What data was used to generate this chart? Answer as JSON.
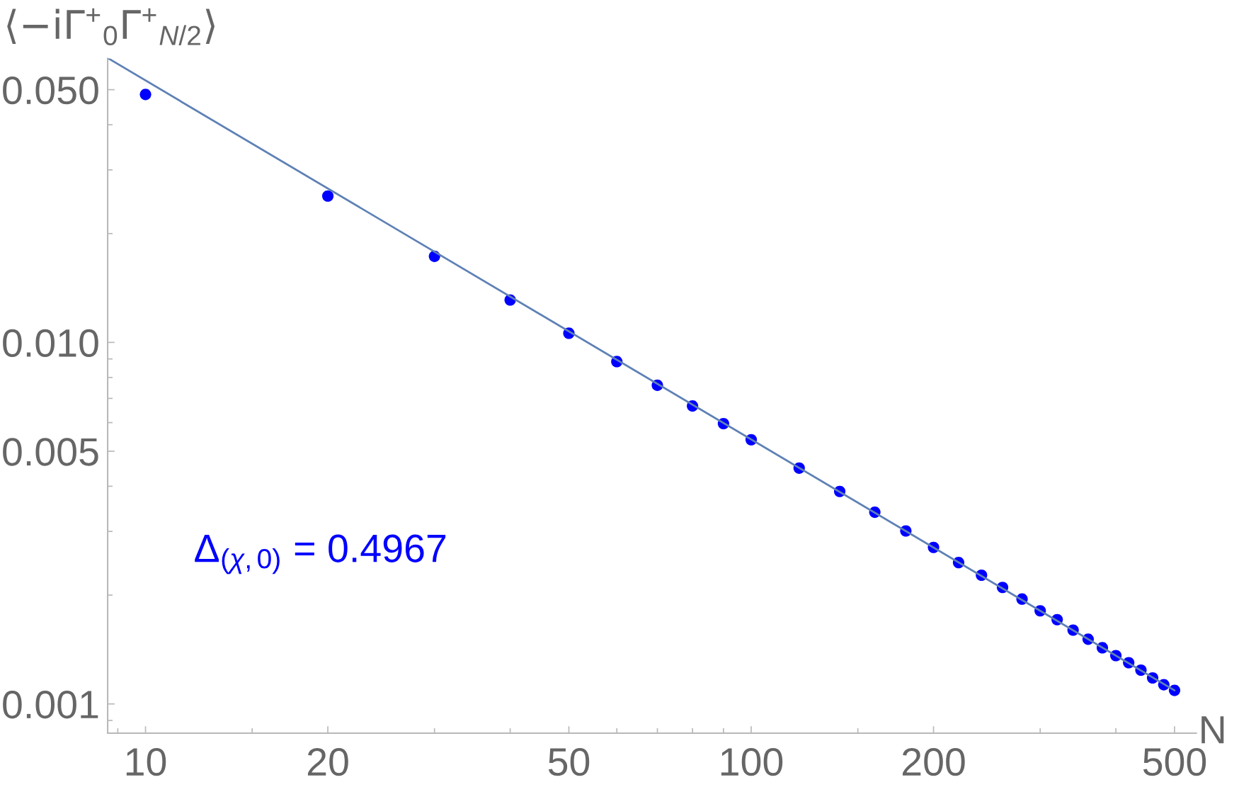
{
  "chart_data": {
    "type": "scatter",
    "xlabel": "N",
    "ylabel": "⟨−iΓ$^{+}$$_{0}$Γ$^{+}$$_{N/2}$⟩",
    "log": "xy",
    "xlim": [
      8.66,
      543
    ],
    "ylim": [
      0.00083,
      0.061
    ],
    "xticks": [
      {
        "value": 9,
        "label": null
      },
      10,
      {
        "value": 15,
        "label": null
      },
      20,
      {
        "value": 30,
        "label": null
      },
      {
        "value": 40,
        "label": null
      },
      50,
      {
        "value": 60,
        "label": null
      },
      {
        "value": 70,
        "label": null
      },
      {
        "value": 80,
        "label": null
      },
      {
        "value": 90,
        "label": null
      },
      100,
      {
        "value": 150,
        "label": null
      },
      200,
      {
        "value": 300,
        "label": null
      },
      {
        "value": 400,
        "label": null
      },
      500
    ],
    "yticks": [
      {
        "value": 0.0009,
        "label": null
      },
      0.001,
      {
        "value": 0.002,
        "label": null
      },
      {
        "value": 0.003,
        "label": null
      },
      {
        "value": 0.004,
        "label": null
      },
      0.005,
      {
        "value": 0.006,
        "label": null
      },
      {
        "value": 0.007,
        "label": null
      },
      {
        "value": 0.008,
        "label": null
      },
      {
        "value": 0.009,
        "label": null
      },
      {
        "value": 0.01,
        "label": "0.010"
      },
      {
        "value": 0.02,
        "label": null
      },
      {
        "value": 0.03,
        "label": null
      },
      {
        "value": 0.04,
        "label": null
      },
      {
        "value": 0.05,
        "label": "0.050"
      }
    ],
    "annotations": [
      "Δ$_{(χ,0)}$ = 0.4967"
    ],
    "series": [
      {
        "color": "#0000ff",
        "marker": "circle",
        "x": [
          10,
          20,
          30,
          40,
          50,
          60,
          70,
          80,
          90,
          100,
          120,
          140,
          160,
          180,
          200,
          220,
          240,
          260,
          280,
          300,
          320,
          340,
          360,
          380,
          400,
          420,
          440,
          460,
          480,
          500
        ],
        "values": [
          0.0485,
          0.0254,
          0.0173,
          0.0131,
          0.0106,
          0.00885,
          0.00761,
          0.00667,
          0.00596,
          0.00538,
          0.00449,
          0.00387,
          0.00339,
          0.00301,
          0.00271,
          0.00246,
          0.00227,
          0.0021,
          0.00195,
          0.00181,
          0.00171,
          0.0016,
          0.00151,
          0.00143,
          0.00136,
          0.0013,
          0.00124,
          0.00118,
          0.00113,
          0.00109
        ]
      },
      {
        "type": "line",
        "color": "#5e81b5",
        "line_style": "solid",
        "x": [
          8.7,
          500
        ],
        "values": [
          0.0609,
          0.00109
        ]
      }
    ]
  }
}
